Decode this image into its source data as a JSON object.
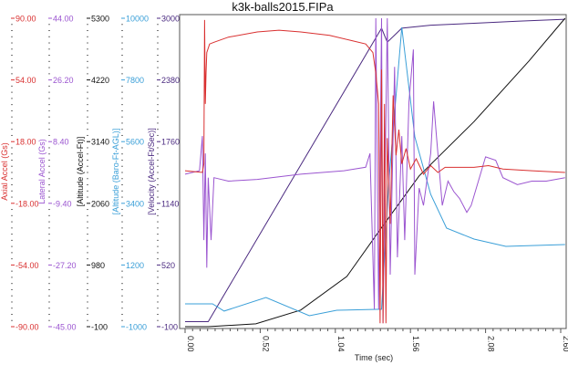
{
  "chart_data": {
    "type": "line",
    "title": "k3k-balls2015.FIPa",
    "xlabel": "Time (sec)",
    "xlim": [
      0,
      2.6
    ],
    "xticks": [
      "0.00",
      "0.52",
      "1.04",
      "1.56",
      "2.08",
      "2.60"
    ],
    "grid": false,
    "axes": [
      {
        "id": "axial",
        "label": "Axial Accel (Gs)",
        "color": "#d93030",
        "ylim": [
          -90,
          90
        ],
        "ticks": [
          "90.00",
          "54.00",
          "18.00",
          "-18.00",
          "-54.00",
          "-90.00"
        ]
      },
      {
        "id": "lateral",
        "label": "Lateral Accel (Gs)",
        "color": "#9b55d0",
        "ylim": [
          -45,
          44
        ],
        "ticks": [
          "44.00",
          "26.20",
          "8.40",
          "-9.40",
          "-27.20",
          "-45.00"
        ]
      },
      {
        "id": "altitude",
        "label": "[Altitude (Accel-Ft)]",
        "color": "#111111",
        "ylim": [
          -100,
          5300
        ],
        "ticks": [
          "5300",
          "4220",
          "3140",
          "2060",
          "980",
          "-100"
        ]
      },
      {
        "id": "baro",
        "label": "[Altitude (Baro-Ft-AGL)]",
        "color": "#3a9fd8",
        "ylim": [
          -1000,
          10000
        ],
        "ticks": [
          "10000",
          "7800",
          "5600",
          "3400",
          "1200",
          "-1000"
        ]
      },
      {
        "id": "velocity",
        "label": "[Velocity (Accel-Ft/Sec)]",
        "color": "#4b2a80",
        "ylim": [
          -100,
          3000
        ],
        "ticks": [
          "3000",
          "2380",
          "1760",
          "1140",
          "520",
          "-100"
        ]
      }
    ],
    "series": [
      {
        "name": "Velocity (Accel-Ft/Sec)",
        "axis": "velocity",
        "color": "#4b2a80",
        "points": [
          [
            0,
            -50
          ],
          [
            0.16,
            -50
          ],
          [
            1.36,
            2900
          ],
          [
            1.4,
            2760
          ],
          [
            1.5,
            2900
          ],
          [
            1.7,
            2930
          ],
          [
            2.0,
            2950
          ],
          [
            2.3,
            2970
          ],
          [
            2.63,
            2990
          ]
        ]
      },
      {
        "name": "Altitude (Accel-Ft)",
        "axis": "altitude",
        "color": "#111111",
        "points": [
          [
            0,
            -100
          ],
          [
            0.16,
            -100
          ],
          [
            0.49,
            -50
          ],
          [
            0.8,
            190
          ],
          [
            1.12,
            780
          ],
          [
            1.37,
            1670
          ],
          [
            1.62,
            2540
          ],
          [
            2.0,
            3490
          ],
          [
            2.38,
            4550
          ],
          [
            2.63,
            5300
          ]
        ]
      },
      {
        "name": "Altitude (Baro-Ft-AGL)",
        "axis": "baro",
        "color": "#3a9fd8",
        "points": [
          [
            0,
            -185
          ],
          [
            0.19,
            -185
          ],
          [
            0.27,
            -445
          ],
          [
            0.56,
            43
          ],
          [
            0.86,
            -608
          ],
          [
            1.05,
            -413
          ],
          [
            1.36,
            -380
          ],
          [
            1.41,
            4143
          ],
          [
            1.5,
            9675
          ],
          [
            1.59,
            5770
          ],
          [
            1.7,
            3720
          ],
          [
            1.81,
            2516
          ],
          [
            2.0,
            2125
          ],
          [
            2.22,
            1865
          ],
          [
            2.63,
            1930
          ]
        ]
      },
      {
        "name": "Lateral Accel (Gs)",
        "axis": "lateral",
        "color": "#9b55d0",
        "points": [
          [
            0,
            -1
          ],
          [
            0.1,
            0
          ],
          [
            0.12,
            10
          ],
          [
            0.13,
            -20
          ],
          [
            0.14,
            5
          ],
          [
            0.15,
            -28
          ],
          [
            0.16,
            -2
          ],
          [
            0.18,
            -20
          ],
          [
            0.2,
            -2
          ],
          [
            0.3,
            -3
          ],
          [
            0.5,
            -2.5
          ],
          [
            0.8,
            -1
          ],
          [
            1.1,
            0
          ],
          [
            1.25,
            1
          ],
          [
            1.28,
            5
          ],
          [
            1.31,
            -40
          ],
          [
            1.32,
            44
          ],
          [
            1.34,
            -40
          ],
          [
            1.36,
            44
          ],
          [
            1.37,
            -44
          ],
          [
            1.4,
            44
          ],
          [
            1.42,
            -30
          ],
          [
            1.45,
            30
          ],
          [
            1.47,
            -25
          ],
          [
            1.5,
            10
          ],
          [
            1.52,
            -20
          ],
          [
            1.55,
            20
          ],
          [
            1.58,
            35
          ],
          [
            1.59,
            -30
          ],
          [
            1.62,
            -5
          ],
          [
            1.65,
            -10
          ],
          [
            1.7,
            5
          ],
          [
            1.72,
            20
          ],
          [
            1.74,
            10
          ],
          [
            1.78,
            -10
          ],
          [
            1.82,
            -3
          ],
          [
            1.86,
            -6
          ],
          [
            1.9,
            -8
          ],
          [
            1.95,
            -12
          ],
          [
            1.98,
            -10
          ],
          [
            2.03,
            -3
          ],
          [
            2.08,
            4
          ],
          [
            2.15,
            3
          ],
          [
            2.2,
            -2
          ],
          [
            2.3,
            -4
          ],
          [
            2.4,
            -3
          ],
          [
            2.5,
            -3
          ],
          [
            2.63,
            -2
          ]
        ]
      },
      {
        "name": "Axial Accel (Gs)",
        "axis": "axial",
        "color": "#d93030",
        "points": [
          [
            0,
            1
          ],
          [
            0.12,
            0
          ],
          [
            0.13,
            5
          ],
          [
            0.135,
            89
          ],
          [
            0.14,
            40
          ],
          [
            0.145,
            58
          ],
          [
            0.15,
            70
          ],
          [
            0.17,
            75
          ],
          [
            0.2,
            76
          ],
          [
            0.3,
            79
          ],
          [
            0.5,
            82
          ],
          [
            0.65,
            83
          ],
          [
            0.8,
            82
          ],
          [
            1.0,
            80
          ],
          [
            1.15,
            77
          ],
          [
            1.25,
            75
          ],
          [
            1.3,
            70
          ],
          [
            1.32,
            58
          ],
          [
            1.34,
            40
          ],
          [
            1.35,
            -88
          ],
          [
            1.36,
            60
          ],
          [
            1.37,
            -88
          ],
          [
            1.38,
            40
          ],
          [
            1.39,
            -88
          ],
          [
            1.4,
            20
          ],
          [
            1.42,
            -30
          ],
          [
            1.44,
            45
          ],
          [
            1.46,
            10
          ],
          [
            1.48,
            25
          ],
          [
            1.5,
            5
          ],
          [
            1.53,
            14
          ],
          [
            1.56,
            2
          ],
          [
            1.6,
            8
          ],
          [
            1.65,
            -1
          ],
          [
            1.7,
            4
          ],
          [
            1.75,
            0
          ],
          [
            1.8,
            3
          ],
          [
            2.0,
            3
          ],
          [
            2.1,
            4
          ],
          [
            2.2,
            2
          ],
          [
            2.4,
            1
          ],
          [
            2.63,
            0
          ]
        ]
      }
    ]
  }
}
